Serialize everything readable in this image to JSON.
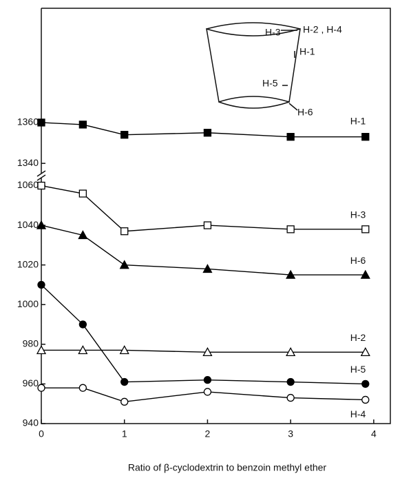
{
  "chart_data": {
    "type": "line",
    "xlabel": "Ratio of β-cyclodextrin to benzoin methyl ether",
    "x": [
      0,
      0.5,
      1,
      2,
      3,
      3.9
    ],
    "xlim": [
      0,
      4.2
    ],
    "xticks": [
      0,
      1,
      2,
      3,
      4
    ],
    "ylim": [
      940,
      1064
    ],
    "yticks": [
      940,
      960,
      980,
      1000,
      1020,
      1040,
      1060
    ],
    "upper_ylim": [
      1335,
      1416
    ],
    "upper_yticks": [
      1340,
      1360
    ],
    "series": [
      {
        "name": "H-1",
        "color": "#000000",
        "marker": "square",
        "filled": true,
        "axis": "upper",
        "values": [
          1360,
          1359,
          1354,
          1355,
          1353,
          1353
        ]
      },
      {
        "name": "H-3",
        "color": "#000000",
        "marker": "square",
        "filled": false,
        "values": [
          1060,
          1056,
          1037,
          1040,
          1038,
          1038
        ]
      },
      {
        "name": "H-6",
        "color": "#000000",
        "marker": "triangle",
        "filled": true,
        "values": [
          1040,
          1035,
          1020,
          1018,
          1015,
          1015
        ]
      },
      {
        "name": "H-2",
        "color": "#000000",
        "marker": "triangle",
        "filled": false,
        "values": [
          977,
          977,
          977,
          976,
          976,
          976
        ]
      },
      {
        "name": "H-5",
        "color": "#000000",
        "marker": "circle",
        "filled": true,
        "values": [
          1010,
          990,
          961,
          962,
          961,
          960
        ]
      },
      {
        "name": "H-4",
        "color": "#000000",
        "marker": "circle",
        "filled": false,
        "values": [
          958,
          958,
          951,
          956,
          953,
          952
        ]
      }
    ],
    "inset": {
      "labels": [
        "H-3",
        "H-2 , H-4",
        "H-1",
        "H-5",
        "H-6"
      ]
    }
  }
}
